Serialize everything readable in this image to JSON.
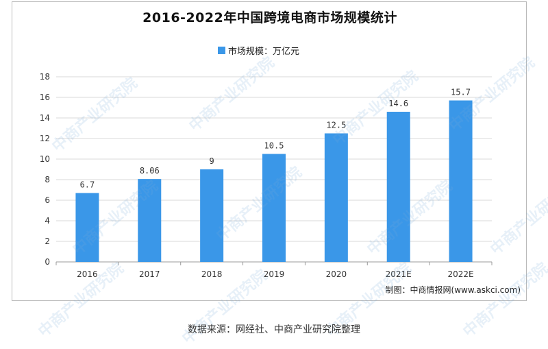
{
  "title": "2016-2022年中国跨境电商市场规模统计",
  "credit": "制图：中商情报网(www.askci.com)",
  "source": "数据来源：网经社、中商产业研究院整理",
  "watermark": "中商产业研究院",
  "colors": {
    "bar": "#3a97e8",
    "grid": "#d9d9d9",
    "axis": "#999999"
  },
  "chart_data": {
    "type": "bar",
    "title": "2016-2022年中国跨境电商市场规模统计",
    "categories": [
      "2016",
      "2017",
      "2018",
      "2019",
      "2020",
      "2021E",
      "2022E"
    ],
    "series": [
      {
        "name": "市场规模：万亿元",
        "values": [
          6.7,
          8.06,
          9,
          10.5,
          12.5,
          14.6,
          15.7
        ]
      }
    ],
    "data_labels": [
      "6.7",
      "8.06",
      "9",
      "10.5",
      "12.5",
      "14.6",
      "15.7"
    ],
    "yticks": [
      0,
      2,
      4,
      6,
      8,
      10,
      12,
      14,
      16,
      18
    ],
    "ylim": [
      0,
      18
    ],
    "grid": true,
    "legend_position": "top-center"
  }
}
